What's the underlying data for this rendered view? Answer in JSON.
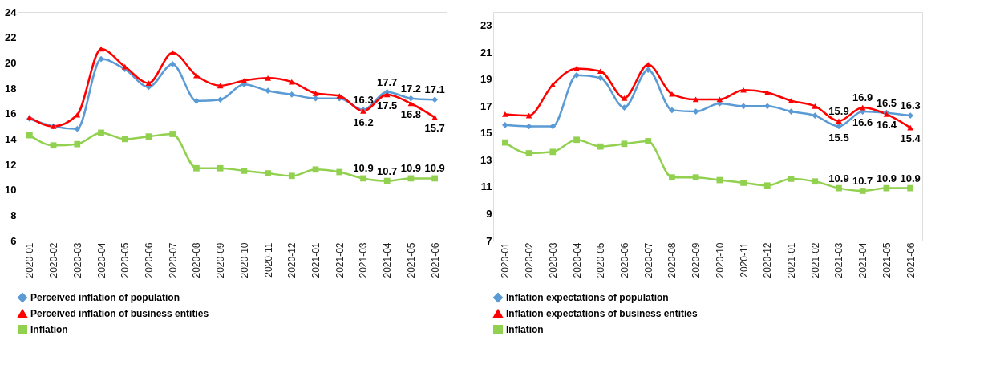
{
  "chart_data": [
    {
      "type": "line",
      "categories": [
        "2020-01",
        "2020-02",
        "2020-03",
        "2020-04",
        "2020-05",
        "2020-06",
        "2020-07",
        "2020-08",
        "2020-09",
        "2020-10",
        "2020-11",
        "2020-12",
        "2021-01",
        "2021-02",
        "2021-03",
        "2021-04",
        "2021-05",
        "2021-06"
      ],
      "ylim": [
        6,
        24
      ],
      "yticks": [
        6,
        8,
        10,
        12,
        14,
        16,
        18,
        20,
        22,
        24
      ],
      "legend": "bottom",
      "grid": false,
      "series": [
        {
          "name": "Perceived inflation of population",
          "color": "#5b9bd5",
          "marker": "diamond",
          "values": [
            15.6,
            15.0,
            14.8,
            20.3,
            19.5,
            18.1,
            19.9,
            17.0,
            17.1,
            18.3,
            17.8,
            17.5,
            17.2,
            17.2,
            16.3,
            17.7,
            17.2,
            17.1
          ],
          "value_labels": [
            null,
            null,
            null,
            null,
            null,
            null,
            null,
            null,
            null,
            null,
            null,
            null,
            null,
            null,
            "16.3",
            "17.7",
            "17.2",
            "17.1"
          ]
        },
        {
          "name": "Perceived inflation of business entities",
          "color": "#ff0000",
          "marker": "triangle",
          "values": [
            15.7,
            15.0,
            15.9,
            21.1,
            19.7,
            18.4,
            20.8,
            19.0,
            18.2,
            18.6,
            18.8,
            18.5,
            17.6,
            17.4,
            16.2,
            17.5,
            16.8,
            15.7
          ],
          "value_labels": [
            null,
            null,
            null,
            null,
            null,
            null,
            null,
            null,
            null,
            null,
            null,
            null,
            null,
            null,
            "16.2",
            "17.5",
            "16.8",
            "15.7"
          ]
        },
        {
          "name": "Inflation",
          "color": "#92d050",
          "marker": "square",
          "values": [
            14.3,
            13.5,
            13.6,
            14.5,
            14.0,
            14.2,
            14.4,
            11.7,
            11.7,
            11.5,
            11.3,
            11.1,
            11.6,
            11.4,
            10.9,
            10.7,
            10.9,
            10.9
          ],
          "value_labels": [
            null,
            null,
            null,
            null,
            null,
            null,
            null,
            null,
            null,
            null,
            null,
            null,
            null,
            null,
            "10.9",
            "10.7",
            "10.9",
            "10.9"
          ]
        }
      ]
    },
    {
      "type": "line",
      "categories": [
        "2020-01",
        "2020-02",
        "2020-03",
        "2020-04",
        "2020-05",
        "2020-06",
        "2020-07",
        "2020-08",
        "2020-09",
        "2020-10",
        "2020-11",
        "2020-12",
        "2021-01",
        "2021-02",
        "2021-03",
        "2021-04",
        "2021-05",
        "2021-06"
      ],
      "ylim": [
        7,
        24
      ],
      "yticks": [
        7,
        9,
        11,
        13,
        15,
        17,
        19,
        21,
        23
      ],
      "legend": "bottom",
      "grid": false,
      "series": [
        {
          "name": "Inflation expectations of population",
          "color": "#5b9bd5",
          "marker": "diamond",
          "values": [
            15.6,
            15.5,
            15.5,
            19.3,
            19.1,
            16.9,
            19.7,
            16.7,
            16.6,
            17.2,
            17.0,
            17.0,
            16.6,
            16.3,
            15.5,
            16.6,
            16.5,
            16.3
          ],
          "value_labels": [
            null,
            null,
            null,
            null,
            null,
            null,
            null,
            null,
            null,
            null,
            null,
            null,
            null,
            null,
            "15.5",
            "16.6",
            "16.5",
            "16.3"
          ]
        },
        {
          "name": "Inflation expectations of business entities",
          "color": "#ff0000",
          "marker": "triangle",
          "values": [
            16.4,
            16.3,
            18.6,
            19.8,
            19.6,
            17.6,
            20.1,
            17.9,
            17.5,
            17.5,
            18.2,
            18.0,
            17.4,
            17.0,
            15.9,
            16.9,
            16.4,
            15.4
          ],
          "value_labels": [
            null,
            null,
            null,
            null,
            null,
            null,
            null,
            null,
            null,
            null,
            null,
            null,
            null,
            null,
            "15.9",
            "16.9",
            "16.4",
            "15.4"
          ]
        },
        {
          "name": "Inflation",
          "color": "#92d050",
          "marker": "square",
          "values": [
            14.3,
            13.5,
            13.6,
            14.5,
            14.0,
            14.2,
            14.4,
            11.7,
            11.7,
            11.5,
            11.3,
            11.1,
            11.6,
            11.4,
            10.9,
            10.7,
            10.9,
            10.9
          ],
          "value_labels": [
            null,
            null,
            null,
            null,
            null,
            null,
            null,
            null,
            null,
            null,
            null,
            null,
            null,
            null,
            "10.9",
            "10.7",
            "10.9",
            "10.9"
          ]
        }
      ]
    }
  ]
}
